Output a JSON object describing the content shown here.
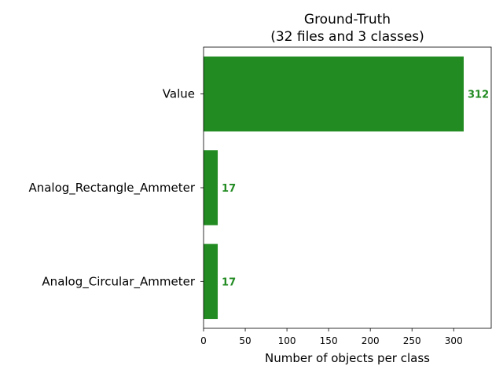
{
  "chart_data": {
    "type": "bar",
    "orientation": "horizontal",
    "title_lines": [
      "Ground-Truth",
      "(32 files and 3 classes)"
    ],
    "categories": [
      "Value",
      "Analog_Rectangle_Ammeter",
      "Analog_Circular_Ammeter"
    ],
    "values": [
      312,
      17,
      17
    ],
    "data_labels": [
      "312",
      "17",
      "17"
    ],
    "xlabel": "Number of objects per class",
    "ylabel": "",
    "xlim": [
      0,
      345
    ],
    "xticks": [
      0,
      50,
      100,
      150,
      200,
      250,
      300
    ],
    "xtick_labels": [
      "0",
      "50",
      "100",
      "150",
      "200",
      "250",
      "300"
    ],
    "grid": false,
    "legend": "none",
    "bar_color": "#228b22"
  }
}
